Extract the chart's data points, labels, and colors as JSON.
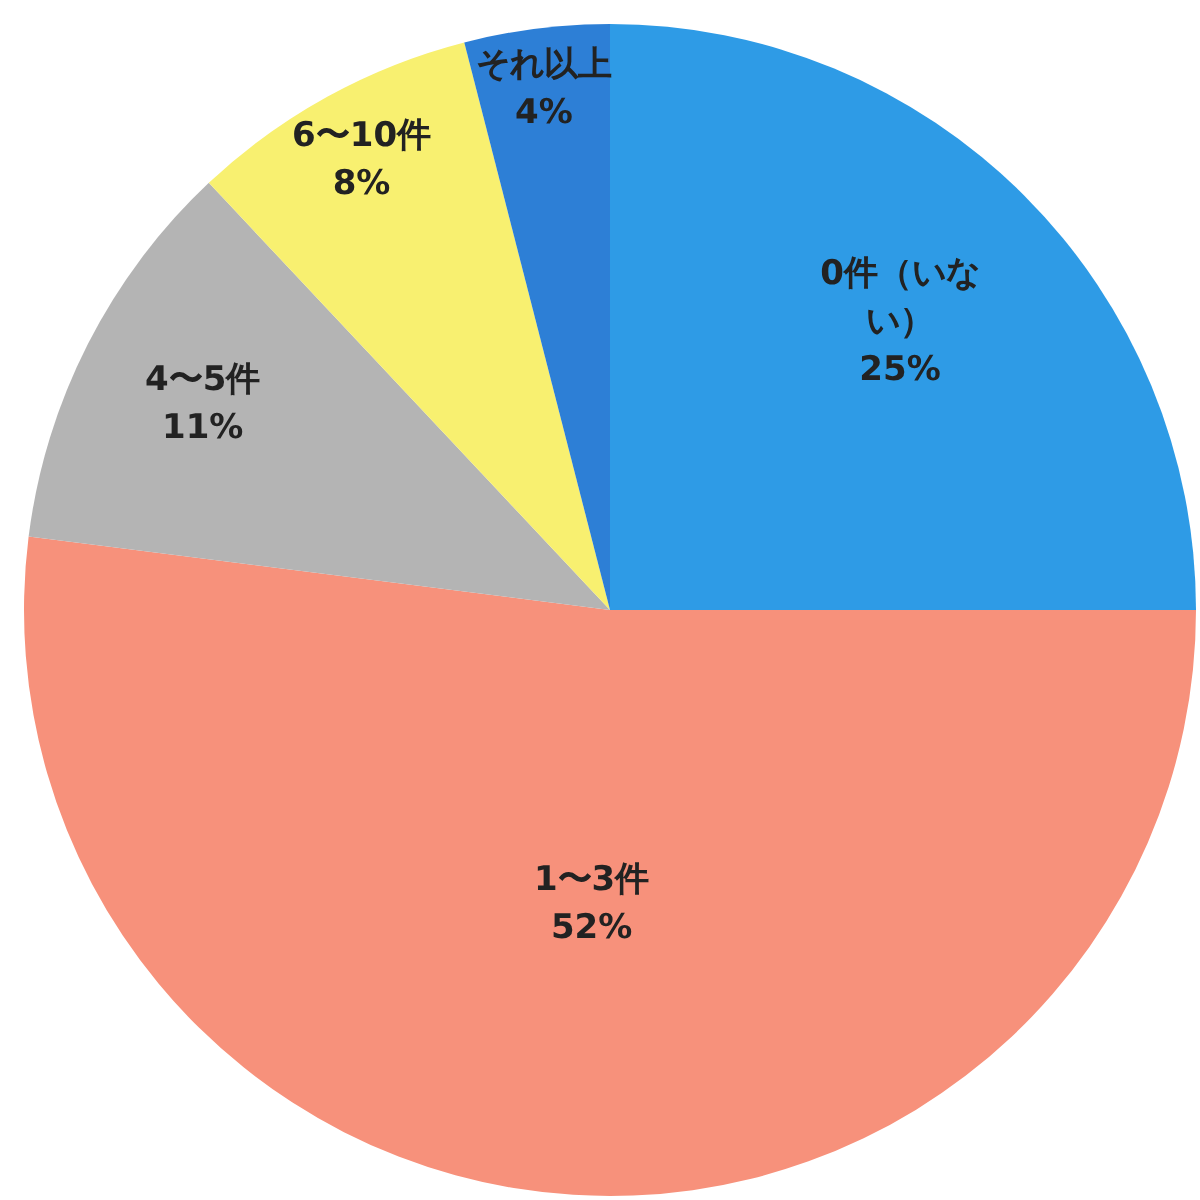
{
  "chart_data": {
    "type": "pie",
    "categories": [
      "0件（いない）",
      "1〜3件",
      "4〜5件",
      "6〜10件",
      "それ以上"
    ],
    "values": [
      25,
      52,
      11,
      8,
      4
    ],
    "colors": [
      "#2e9be6",
      "#f7917b",
      "#b4b4b4",
      "#f8f070",
      "#2d7fd6"
    ],
    "value_labels": [
      "25%",
      "52%",
      "11%",
      "8%",
      "4%"
    ]
  }
}
